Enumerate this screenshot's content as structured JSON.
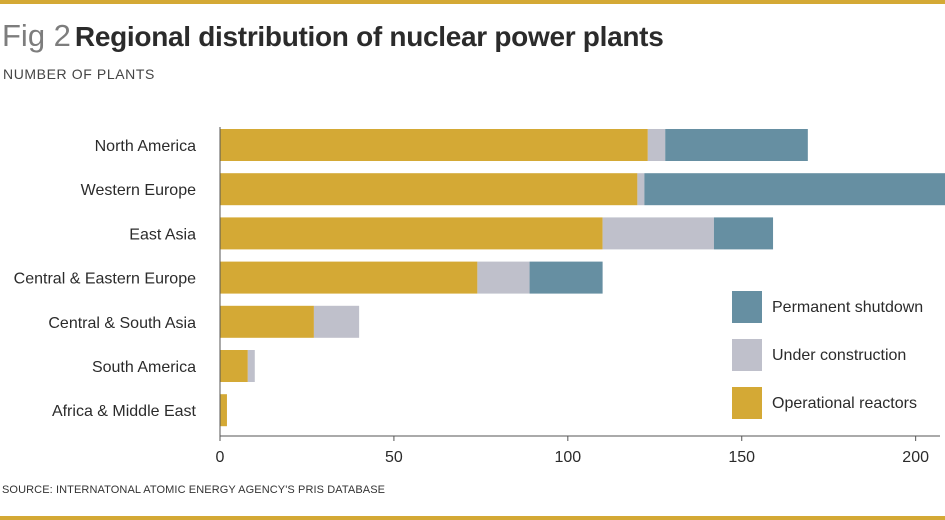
{
  "header": {
    "fig_label": "Fig 2",
    "title": "Regional distribution of nuclear power plants",
    "subtitle": "NUMBER OF PLANTS"
  },
  "footer": {
    "source": "SOURCE: INTERNATONAL ATOMIC ENERGY AGENCY'S PRIS DATABASE"
  },
  "colors": {
    "accent_rule": "#d4a935",
    "operational": "#d4a935",
    "construction": "#bfc0cb",
    "shutdown": "#668fa2",
    "axis": "#555555"
  },
  "chart_data": {
    "type": "bar",
    "orientation": "horizontal",
    "stacked": true,
    "categories": [
      "North America",
      "Western Europe",
      "East Asia",
      "Central & Eastern Europe",
      "Central & South Asia",
      "South America",
      "Africa & Middle East"
    ],
    "series": [
      {
        "name": "Operational reactors",
        "color": "#d4a935",
        "values": [
          123,
          120,
          110,
          74,
          27,
          8,
          2
        ]
      },
      {
        "name": "Under construction",
        "color": "#bfc0cb",
        "values": [
          5,
          2,
          32,
          15,
          13,
          2,
          0
        ]
      },
      {
        "name": "Permanent shutdown",
        "color": "#668fa2",
        "values": [
          41,
          87,
          17,
          21,
          0,
          0,
          0
        ]
      }
    ],
    "xlim": [
      0,
      207
    ],
    "xticks": [
      0,
      50,
      100,
      150,
      200
    ],
    "title": "Regional distribution of nuclear power plants",
    "xlabel": "",
    "ylabel": "NUMBER OF PLANTS",
    "grid": false,
    "legend_position": "bottom-right",
    "legend_order": [
      "Permanent shutdown",
      "Under construction",
      "Operational reactors"
    ]
  }
}
